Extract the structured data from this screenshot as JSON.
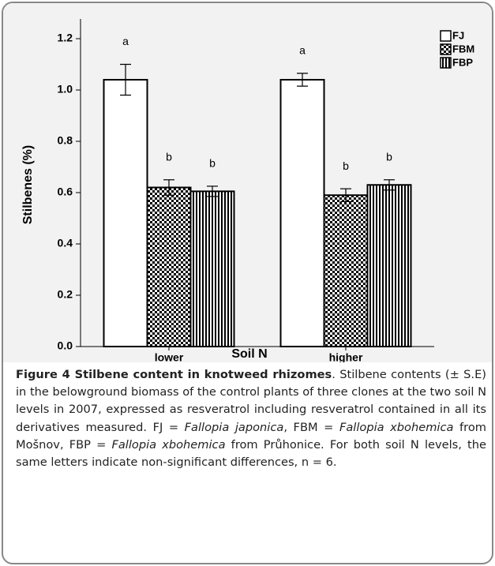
{
  "chart_data": {
    "type": "bar",
    "ylabel": "Stilbenes (%)",
    "xlabel": "Soil N",
    "categories": [
      "lower",
      "higher"
    ],
    "series": [
      {
        "name": "FJ",
        "pattern": "none",
        "values": [
          1.04,
          1.04
        ],
        "errors": [
          0.06,
          0.025
        ],
        "letters": [
          "a",
          "a"
        ]
      },
      {
        "name": "FBM",
        "pattern": "checker",
        "values": [
          0.62,
          0.59
        ],
        "errors": [
          0.03,
          0.025
        ],
        "letters": [
          "b",
          "b"
        ]
      },
      {
        "name": "FBP",
        "pattern": "vertical",
        "values": [
          0.605,
          0.63
        ],
        "errors": [
          0.02,
          0.02
        ],
        "letters": [
          "b",
          "b"
        ]
      }
    ],
    "ylim": [
      0,
      1.2
    ],
    "yticks": [
      {
        "value": 0,
        "label": "0.0"
      },
      0.2,
      0.4,
      0.6,
      0.8,
      {
        "value": 1,
        "label": "1.0"
      },
      1.2
    ]
  },
  "caption": {
    "label": "Figure 4",
    "title": "Stilbene content in knotweed rhizomes",
    "segments": [
      {
        "text": ". Stilbene contents (± S.E) in the belowground biomass of the control plants of three clones at the two soil N levels in 2007, expressed as resveratrol including resveratrol contained in all its derivatives measured. FJ = ",
        "italic": false
      },
      {
        "text": "Fallopia japonica",
        "italic": true
      },
      {
        "text": ", FBM = ",
        "italic": false
      },
      {
        "text": "Fallopia xbohemica",
        "italic": true
      },
      {
        "text": " from Mošnov, FBP = ",
        "italic": false
      },
      {
        "text": "Fallopia xbohemica",
        "italic": true
      },
      {
        "text": " from Průhonice. For both soil N levels, the same letters indicate non-significant differences, n = 6.",
        "italic": false
      }
    ]
  }
}
